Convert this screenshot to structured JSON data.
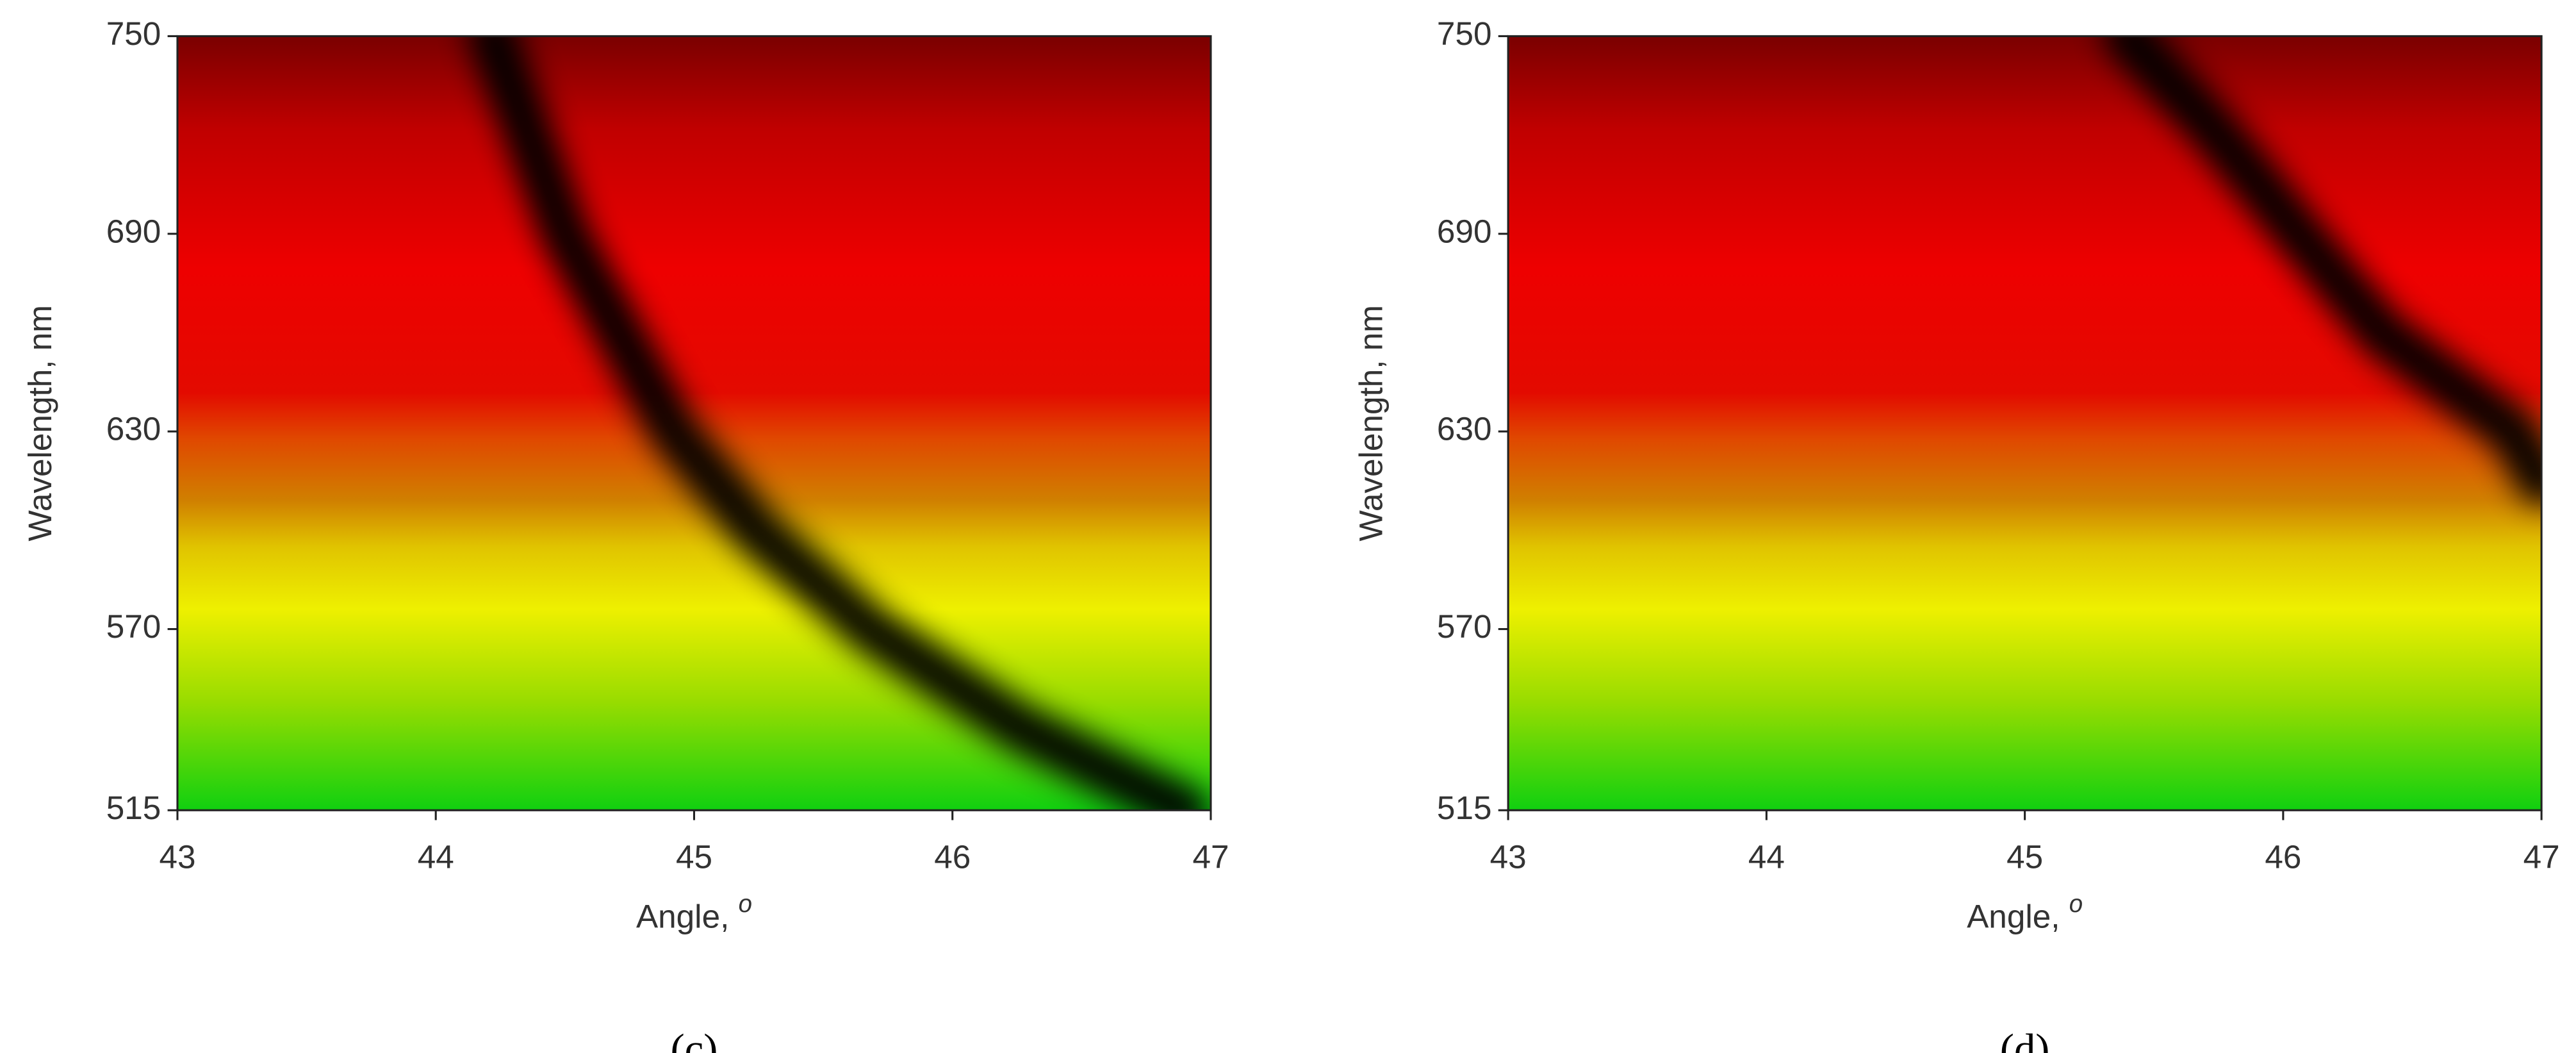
{
  "chart_data": [
    {
      "type": "heatmap",
      "panel_label": "(c)",
      "xlabel": "Angle,",
      "xlabel_sup": "o",
      "ylabel": "Wavelength, nm",
      "xlim": [
        43,
        47
      ],
      "ylim": [
        515,
        750
      ],
      "xticks": [
        43,
        44,
        45,
        46,
        47
      ],
      "yticks": [
        515,
        570,
        630,
        690,
        750
      ],
      "curve": {
        "x": [
          44.22,
          44.5,
          44.92,
          45.24,
          45.68,
          46.26,
          46.9
        ],
        "y": [
          750,
          690,
          630,
          600,
          570,
          540,
          515
        ]
      }
    },
    {
      "type": "heatmap",
      "panel_label": "(d)",
      "xlabel": "Angle,",
      "xlabel_sup": "o",
      "ylabel": "Wavelength, nm",
      "xlim": [
        43,
        47
      ],
      "ylim": [
        515,
        750
      ],
      "xticks": [
        43,
        44,
        45,
        46,
        47
      ],
      "yticks": [
        515,
        570,
        630,
        690,
        750
      ],
      "curve": {
        "x": [
          45.4,
          45.75,
          46.06,
          46.38,
          46.89,
          47
        ],
        "y": [
          750,
          720,
          690,
          660,
          630,
          615
        ]
      }
    }
  ]
}
